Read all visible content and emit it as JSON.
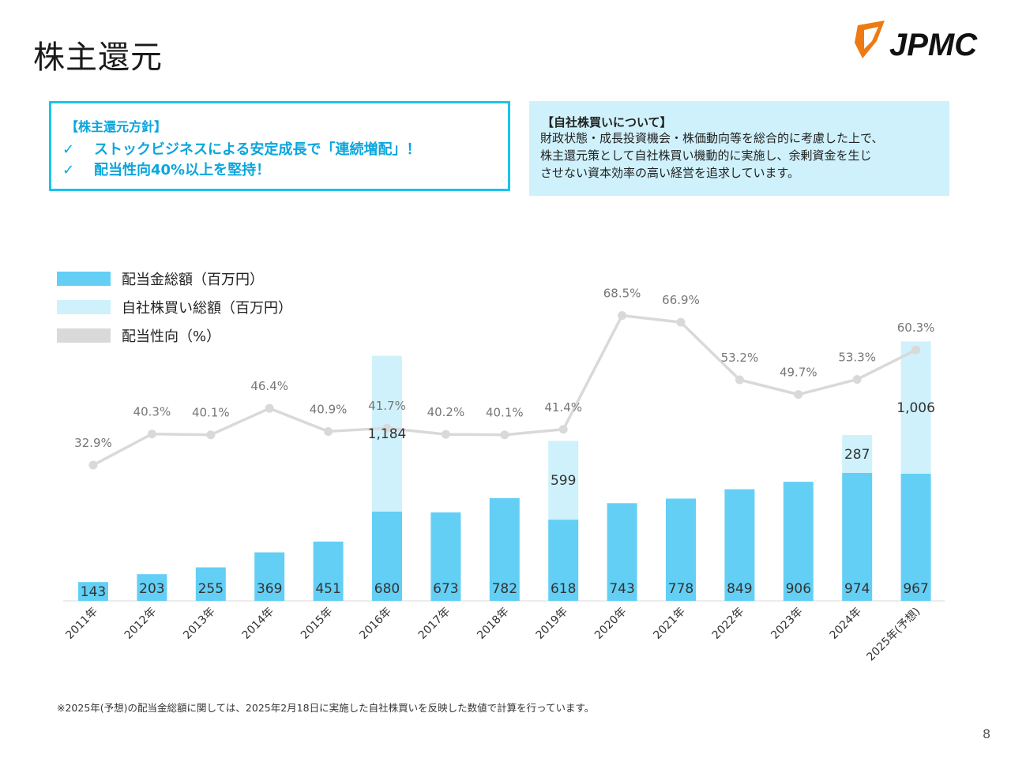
{
  "page": {
    "title": "株主還元",
    "logo_text": "JPMC",
    "page_number": "8",
    "footnote": "※2025年(予想)の配当金総額に関しては、2025年2月18日に実施した自社株買いを反映した数値で計算を行っています。"
  },
  "policy": {
    "heading": "【株主還元方針】",
    "check_icon": "✓",
    "items": [
      "ストックビジネスによる安定成長で「連続増配」！",
      "配当性向40%以上を堅持！"
    ]
  },
  "buyback": {
    "heading": "【自社株買いについて】",
    "lines": [
      "財政状態・成長投資機会・株価動向等を総合的に考慮した上で、",
      "株主還元策として自社株買い機動的に実施し、余剰資金を生じ",
      "させない資本効率の高い経営を追求しています。"
    ]
  },
  "colors": {
    "dividend": "#63cff5",
    "buyback": "#cff1fb",
    "payout": "#d9d9d9",
    "accent": "#0aa6dd",
    "box_border": "#1cc4ea",
    "logo_orange": "#ee7a12"
  },
  "chart_data": {
    "type": "bar",
    "categories": [
      "2011年",
      "2012年",
      "2013年",
      "2014年",
      "2015年",
      "2016年",
      "2017年",
      "2018年",
      "2019年",
      "2020年",
      "2021年",
      "2022年",
      "2023年",
      "2024年",
      "2025年(予想)"
    ],
    "series": [
      {
        "name": "配当金総額（百万円）",
        "type": "bar",
        "stack": "total",
        "values": [
          143,
          203,
          255,
          369,
          451,
          680,
          673,
          782,
          618,
          743,
          778,
          849,
          906,
          974,
          967
        ],
        "labels": [
          "143",
          "203",
          "255",
          "369",
          "451",
          "680",
          "673",
          "782",
          "618",
          "743",
          "778",
          "849",
          "906",
          "974",
          "967"
        ]
      },
      {
        "name": "自社株買い総額（百万円）",
        "type": "bar",
        "stack": "total",
        "values": [
          null,
          null,
          null,
          null,
          null,
          1184,
          null,
          null,
          599,
          null,
          null,
          null,
          null,
          287,
          1006
        ],
        "labels": [
          "",
          "",
          "",
          "",
          "",
          "1,184",
          "",
          "",
          "599",
          "",
          "",
          "",
          "",
          "287",
          "1,006"
        ]
      },
      {
        "name": "配当性向（%）",
        "type": "line",
        "values": [
          32.9,
          40.3,
          40.1,
          46.4,
          40.9,
          41.7,
          40.2,
          40.1,
          41.4,
          68.5,
          66.9,
          53.2,
          49.7,
          53.3,
          60.3
        ],
        "labels": [
          "32.9%",
          "40.3%",
          "40.1%",
          "46.4%",
          "40.9%",
          "41.7%",
          "40.2%",
          "40.1%",
          "41.4%",
          "68.5%",
          "66.9%",
          "53.2%",
          "49.7%",
          "53.3%",
          "60.3%"
        ]
      }
    ],
    "legend_position": "top-left",
    "grid": false
  }
}
